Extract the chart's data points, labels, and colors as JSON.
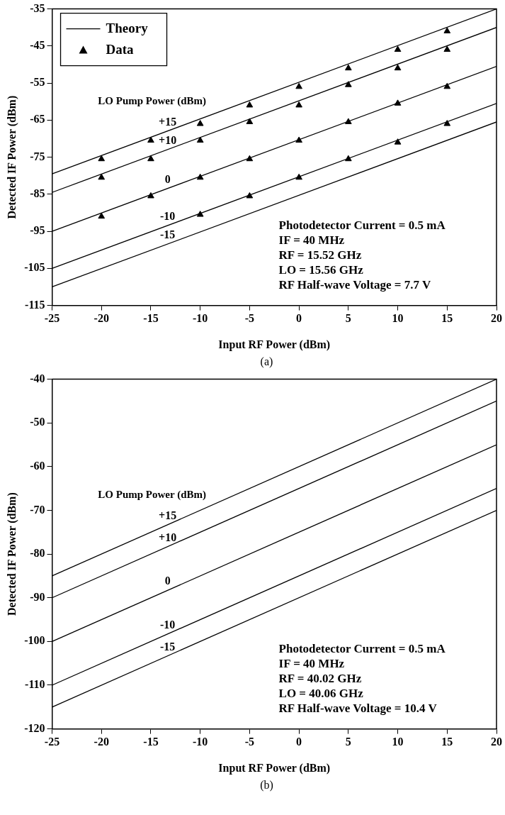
{
  "chart_data": [
    {
      "type": "line",
      "title": "(a)",
      "xlabel": "Input RF Power (dBm)",
      "ylabel": "Detected IF Power (dBm)",
      "xlim": [
        -25,
        20
      ],
      "ylim": [
        -115,
        -35
      ],
      "xticks": [
        -25,
        -20,
        -15,
        -10,
        -5,
        0,
        5,
        10,
        15,
        20
      ],
      "yticks": [
        -115,
        -105,
        -95,
        -85,
        -75,
        -65,
        -55,
        -45,
        -35
      ],
      "legend": "top left",
      "grid": false,
      "line_style": "solid",
      "series": [
        {
          "name": "Theory",
          "color": "#000000",
          "marker": "none",
          "x": [
            -25,
            20
          ],
          "values": [
            -79.5,
            -35
          ]
        },
        {
          "color": "#000000",
          "marker": "none",
          "x": [
            -25,
            20
          ],
          "values": [
            -84.5,
            -40
          ]
        },
        {
          "color": "#000000",
          "marker": "none",
          "x": [
            -25,
            20
          ],
          "values": [
            -95,
            -50.5
          ]
        },
        {
          "color": "#000000",
          "marker": "none",
          "x": [
            -25,
            20
          ],
          "values": [
            -105,
            -60.5
          ]
        },
        {
          "color": "#000000",
          "marker": "none",
          "x": [
            -25,
            20
          ],
          "values": [
            -110,
            -65.5
          ]
        },
        {
          "name": "Data",
          "type": "scatter",
          "color": "#000000",
          "marker": "triangle",
          "x": [
            -20,
            -15,
            -10,
            -5,
            0,
            5,
            10,
            15,
            -20,
            -15,
            -10,
            -5,
            0,
            5,
            10,
            15,
            -20,
            -15,
            -10,
            -5,
            0,
            5,
            10,
            15,
            -10,
            -5,
            0,
            5,
            10,
            15
          ],
          "values": [
            -75.5,
            -70.5,
            -66,
            -61,
            -56,
            -51,
            -46,
            -41,
            -80.5,
            -75.5,
            -70.5,
            -65.5,
            -61,
            -55.5,
            -51,
            -46,
            -91,
            -85.5,
            -80.5,
            -75.5,
            -70.5,
            -65.5,
            -60.5,
            -56,
            -90.5,
            -85.5,
            -80.5,
            -75.5,
            -71,
            -66
          ]
        }
      ],
      "annotations": [
        "LO Pump Power (dBm)",
        "+15",
        "+10",
        "0",
        "-10",
        "-15",
        "Photodetector Current = 0.5 mA",
        "IF = 40 MHz",
        "RF = 15.52 GHz",
        "LO = 15.56 GHz",
        "RF Half-wave Voltage = 7.7 V"
      ]
    },
    {
      "type": "line",
      "title": "(b)",
      "xlabel": "Input RF Power (dBm)",
      "ylabel": "Detected IF Power (dBm)",
      "xlim": [
        -25,
        20
      ],
      "ylim": [
        -120,
        -40
      ],
      "xticks": [
        -25,
        -20,
        -15,
        -10,
        -5,
        0,
        5,
        10,
        15,
        20
      ],
      "yticks": [
        -120,
        -110,
        -100,
        -90,
        -80,
        -70,
        -60,
        -50,
        -40
      ],
      "grid": false,
      "line_style": "solid",
      "series": [
        {
          "color": "#000000",
          "marker": "none",
          "x": [
            -25,
            20
          ],
          "values": [
            -85,
            -40
          ]
        },
        {
          "color": "#000000",
          "marker": "none",
          "x": [
            -25,
            20
          ],
          "values": [
            -90,
            -45
          ]
        },
        {
          "color": "#000000",
          "marker": "none",
          "x": [
            -25,
            20
          ],
          "values": [
            -100,
            -55
          ]
        },
        {
          "color": "#000000",
          "marker": "none",
          "x": [
            -25,
            20
          ],
          "values": [
            -110,
            -65
          ]
        },
        {
          "color": "#000000",
          "marker": "none",
          "x": [
            -25,
            20
          ],
          "values": [
            -115,
            -70
          ]
        }
      ],
      "annotations": [
        "LO Pump Power (dBm)",
        "+15",
        "+10",
        "0",
        "-10",
        "-15",
        "Photodetector Current = 0.5 mA",
        "IF = 40 MHz",
        "RF = 40.02 GHz",
        "LO = 40.06 GHz",
        "RF Half-wave Voltage = 10.4 V"
      ]
    }
  ]
}
